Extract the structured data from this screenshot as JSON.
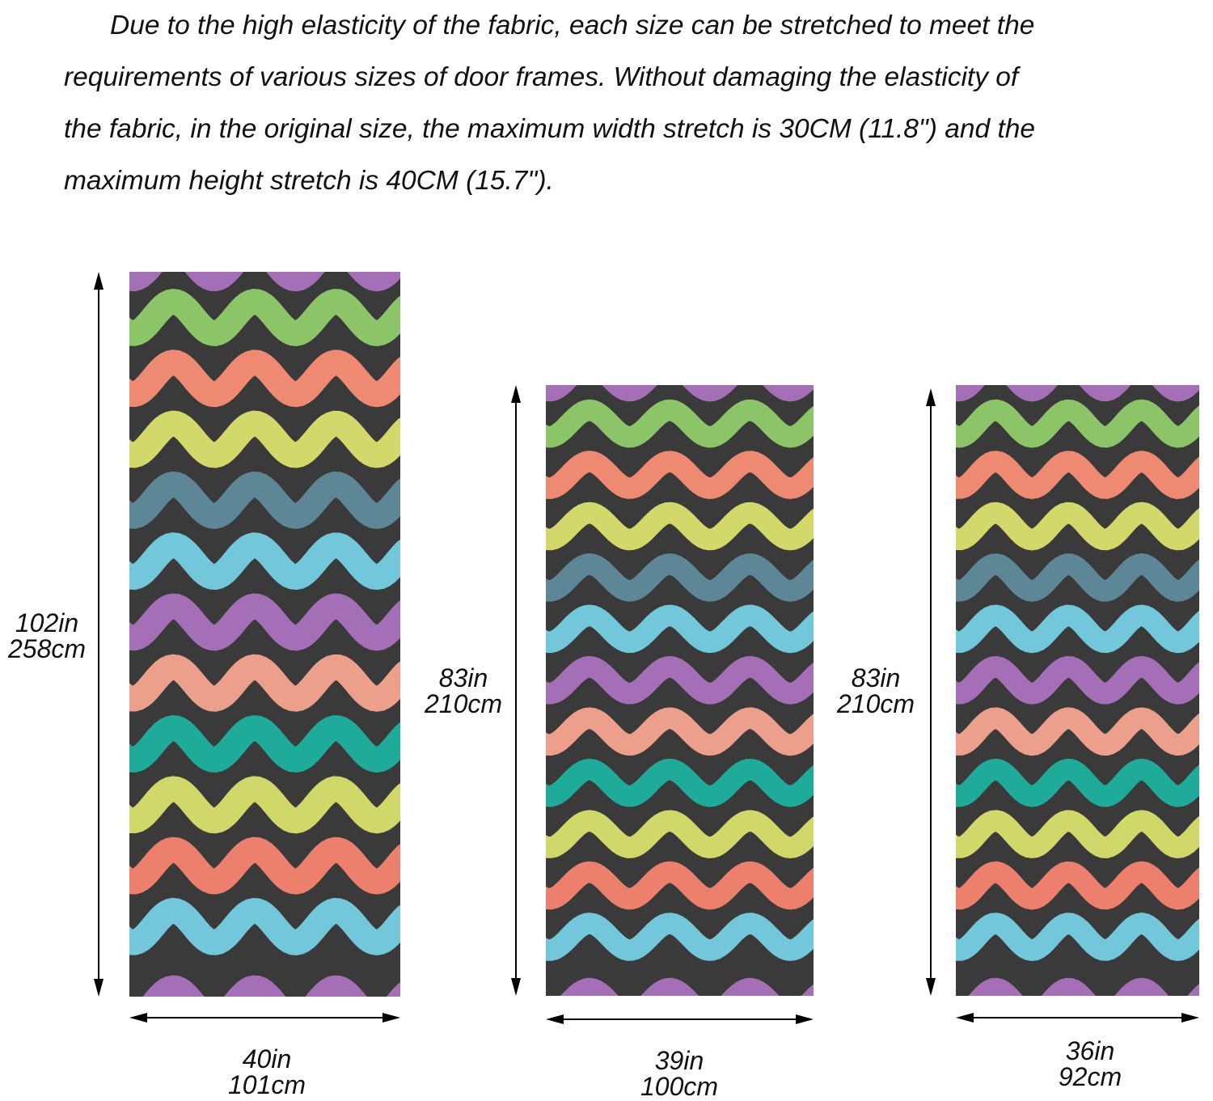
{
  "description": {
    "line1": "Due to the high elasticity of the fabric, each size can be stretched to meet the",
    "line2": "requirements of various sizes of door frames. Without damaging the elasticity of",
    "line3": "the fabric, in the original size, the maximum width stretch is 30CM (11.8\") and the",
    "line4": "maximum height stretch is 40CM (15.7\")."
  },
  "panels": [
    {
      "height_in": "102in",
      "height_cm": "258cm",
      "width_in": "40in",
      "width_cm": "101cm"
    },
    {
      "height_in": "83in",
      "height_cm": "210cm",
      "width_in": "39in",
      "width_cm": "100cm"
    },
    {
      "height_in": "83in",
      "height_cm": "210cm",
      "width_in": "36in",
      "width_cm": "92cm"
    }
  ],
  "pattern": {
    "background": "#3a3a3a",
    "stripe_colors": [
      "#8bc567",
      "#ee8a72",
      "#d2d86a",
      "#5d8797",
      "#72c8da",
      "#a46fb6",
      "#eca08b",
      "#1fab9a",
      "#cfd868",
      "#ec806d",
      "#72c8da"
    ]
  }
}
